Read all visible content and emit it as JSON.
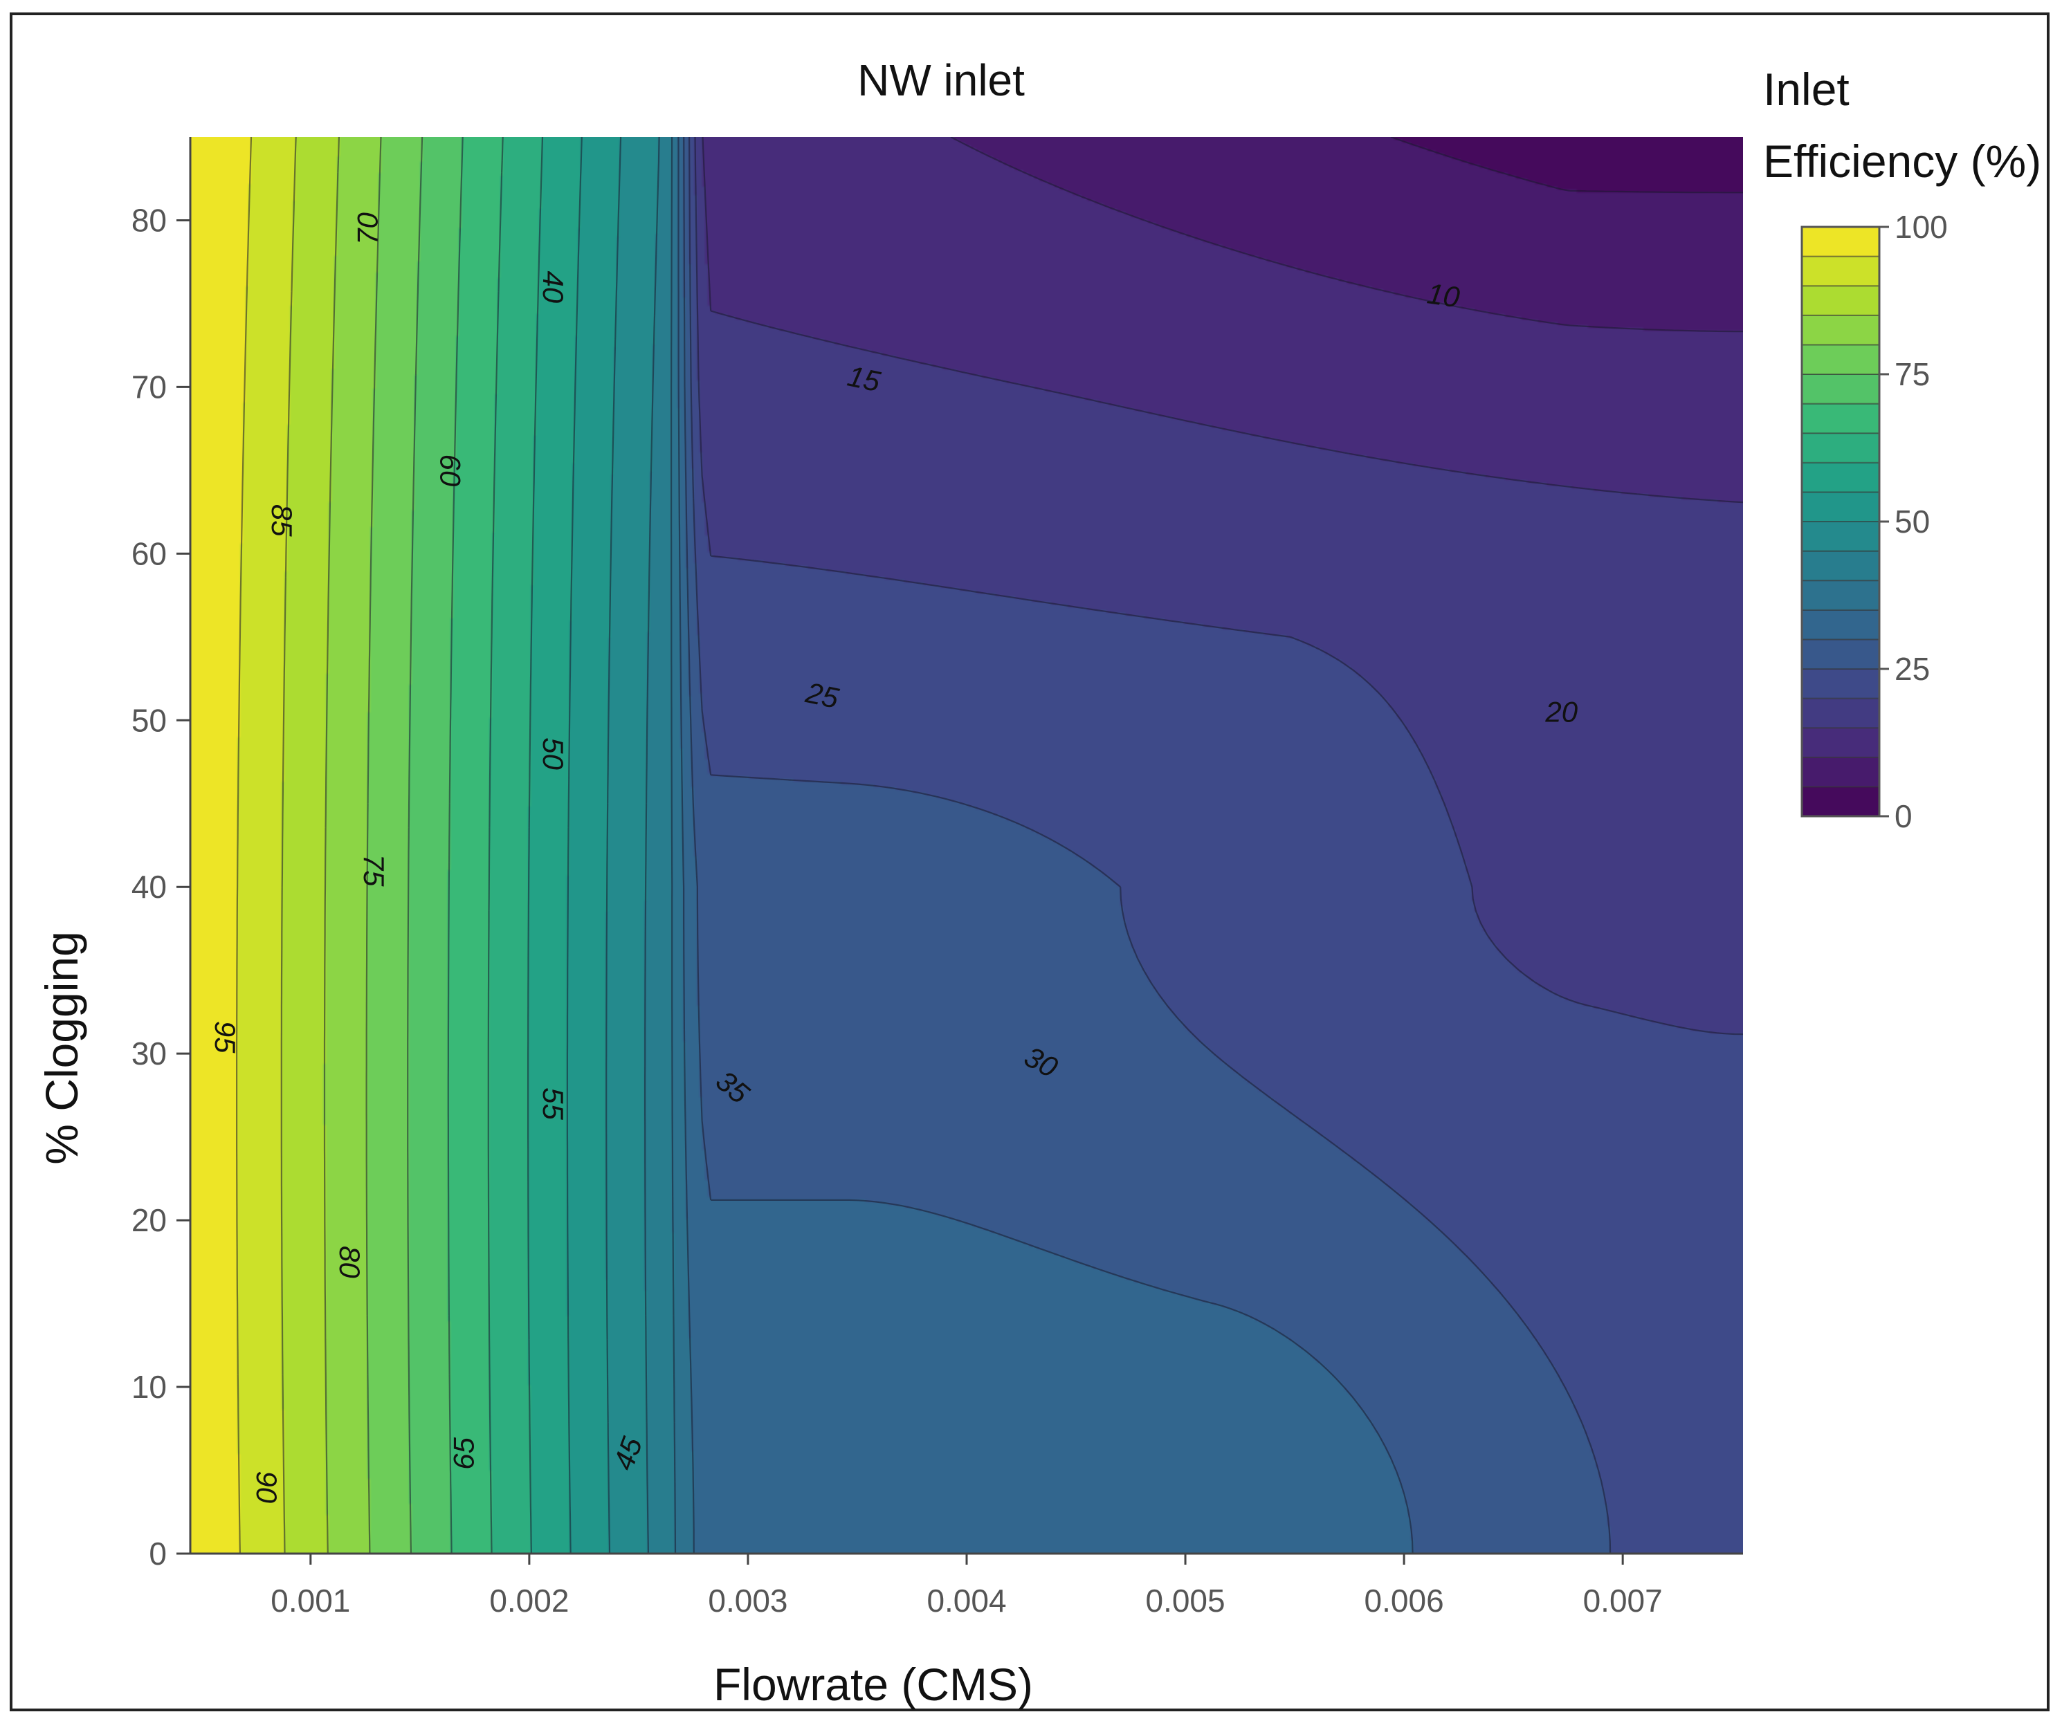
{
  "chart_data": {
    "type": "contour",
    "title": "NW inlet",
    "xlabel": "Flowrate (CMS)",
    "ylabel": "% Clogging",
    "x_ticks": [
      "0.001",
      "0.002",
      "0.003",
      "0.004",
      "0.005",
      "0.006",
      "0.007"
    ],
    "x_tick_values": [
      0.001,
      0.002,
      0.003,
      0.004,
      0.005,
      0.006,
      0.007
    ],
    "y_ticks": [
      "0",
      "10",
      "20",
      "30",
      "40",
      "50",
      "60",
      "70",
      "80"
    ],
    "y_tick_values": [
      0,
      10,
      20,
      30,
      40,
      50,
      60,
      70,
      80
    ],
    "xlim": [
      0.00045,
      0.00755
    ],
    "ylim": [
      0,
      85
    ],
    "colorbar": {
      "title_line1": "Inlet",
      "title_line2": "Efficiency (%)",
      "range": [
        0,
        100
      ],
      "step": 5,
      "ticks": [
        "0",
        "25",
        "50",
        "75",
        "100"
      ],
      "tick_values": [
        0,
        25,
        50,
        75,
        100
      ],
      "colorscale": "viridis"
    },
    "contour_levels": [
      5,
      10,
      15,
      20,
      25,
      30,
      35,
      40,
      45,
      50,
      55,
      60,
      65,
      70,
      75,
      80,
      85,
      90,
      95
    ],
    "contour_labels": [
      {
        "text": "95",
        "x": 0.00061,
        "y": 31,
        "rot": 90
      },
      {
        "text": "90",
        "x": 0.0008,
        "y": 4,
        "rot": 90
      },
      {
        "text": "85",
        "x": 0.00087,
        "y": 62,
        "rot": 90
      },
      {
        "text": "80",
        "x": 0.00118,
        "y": 17.5,
        "rot": 90
      },
      {
        "text": "75",
        "x": 0.00129,
        "y": 41,
        "rot": 90
      },
      {
        "text": "70",
        "x": 0.00126,
        "y": 79.5,
        "rot": -90
      },
      {
        "text": "65",
        "x": 0.0017,
        "y": 6,
        "rot": -90
      },
      {
        "text": "60",
        "x": 0.00164,
        "y": 65,
        "rot": 90
      },
      {
        "text": "55",
        "x": 0.00211,
        "y": 27,
        "rot": 90
      },
      {
        "text": "50",
        "x": 0.00211,
        "y": 48,
        "rot": 90
      },
      {
        "text": "45",
        "x": 0.00245,
        "y": 6,
        "rot": -70
      },
      {
        "text": "40",
        "x": 0.00211,
        "y": 76,
        "rot": 90
      },
      {
        "text": "35",
        "x": 0.00293,
        "y": 28,
        "rot": 40
      },
      {
        "text": "30",
        "x": 0.00434,
        "y": 29.5,
        "rot": 28
      },
      {
        "text": "25",
        "x": 0.00334,
        "y": 51.5,
        "rot": 12
      },
      {
        "text": "20",
        "x": 0.00672,
        "y": 50.5,
        "rot": 0
      },
      {
        "text": "15",
        "x": 0.00353,
        "y": 70.5,
        "rot": 12
      },
      {
        "text": "10",
        "x": 0.00618,
        "y": 75.5,
        "rot": 8
      }
    ]
  }
}
